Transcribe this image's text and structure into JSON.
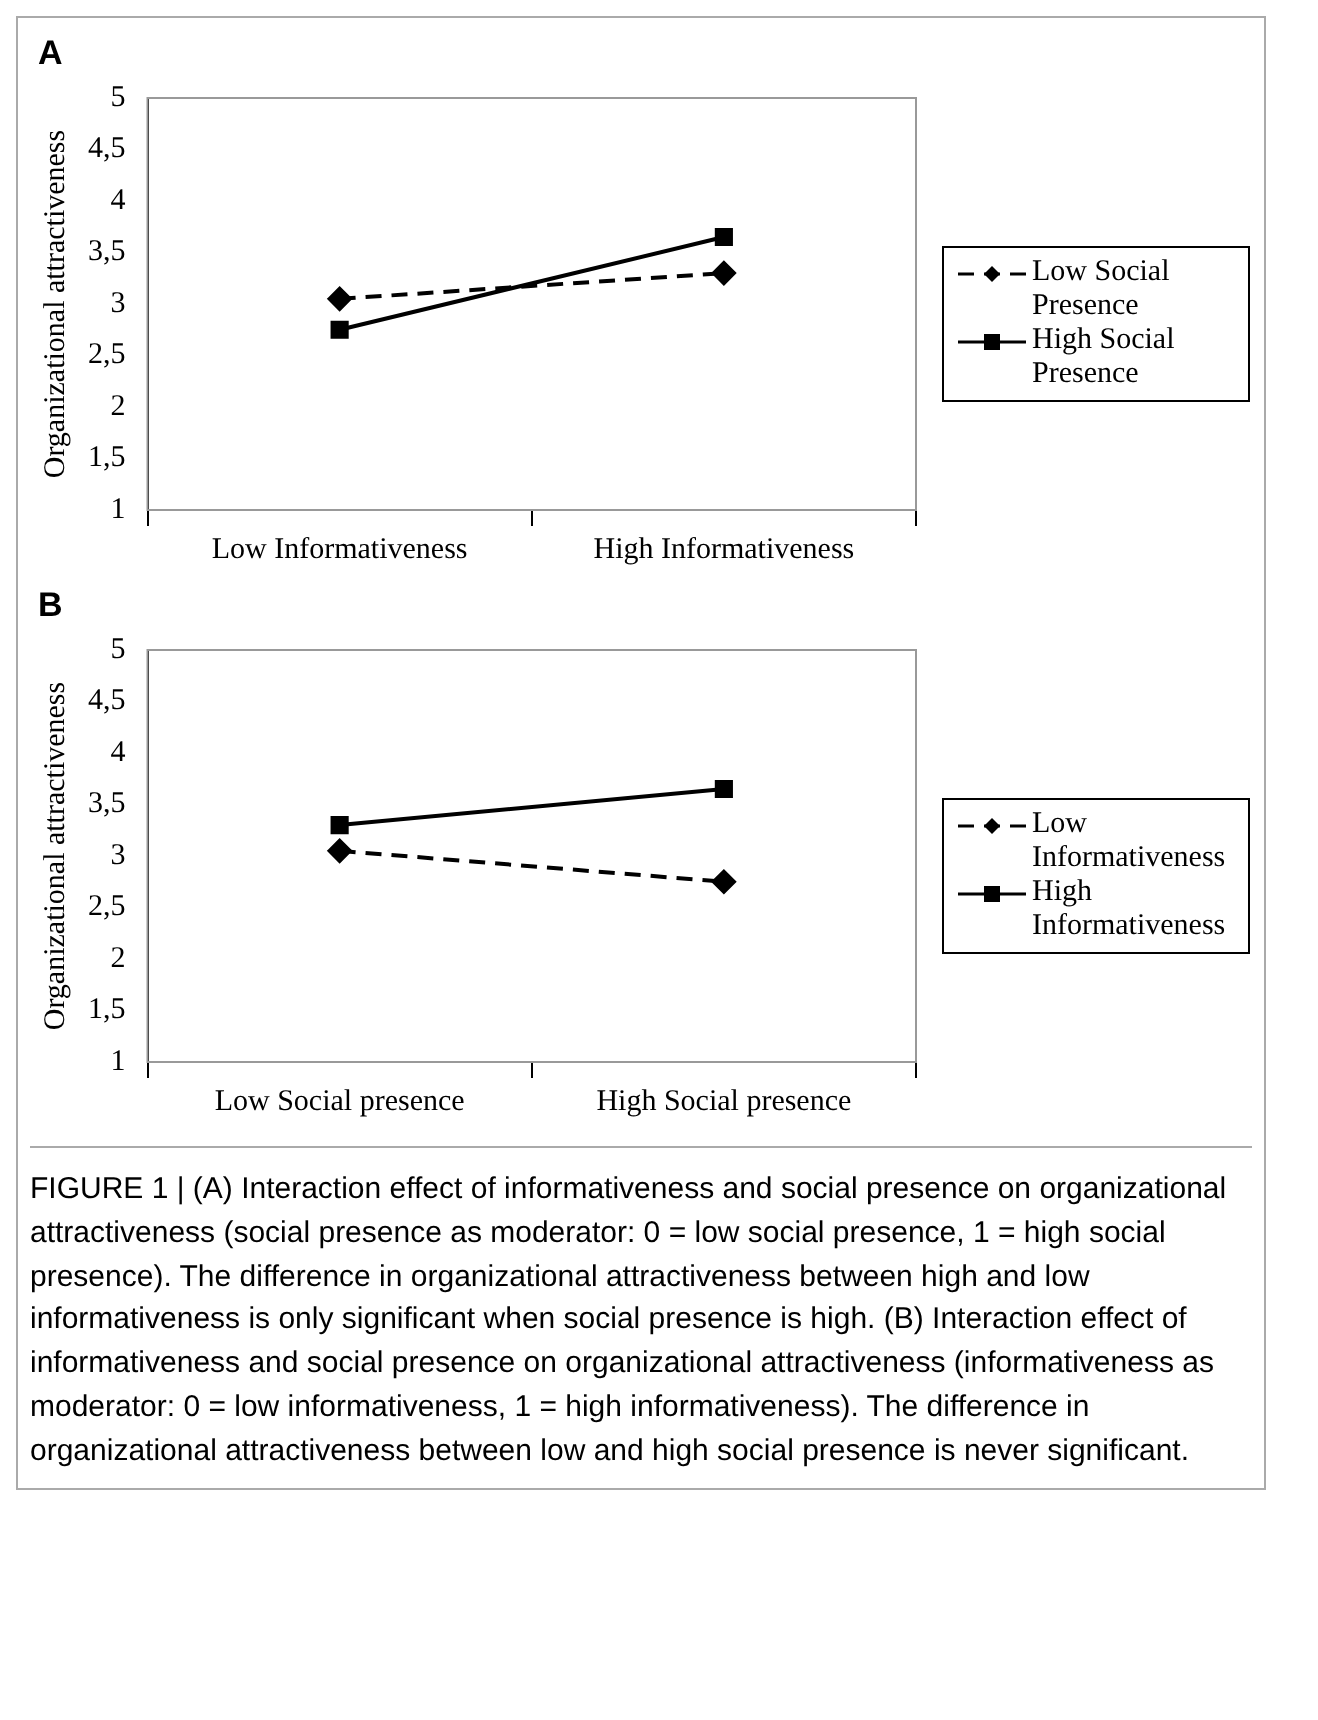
{
  "chart_data": [
    {
      "type": "line",
      "title": "A",
      "ylabel": "Organizational attractiveness",
      "categories": [
        "Low Informativeness",
        "High Informativeness"
      ],
      "series": [
        {
          "name": "Low Social Presence",
          "color": "#000000",
          "values": [
            3.05,
            3.3
          ],
          "line_style": "dashed",
          "marker": "diamond"
        },
        {
          "name": "High Social Presence",
          "color": "#000000",
          "values": [
            2.75,
            3.65
          ],
          "line_style": "solid",
          "marker": "square"
        }
      ],
      "ylim": [
        1,
        5
      ],
      "yticks": [
        1,
        {
          "value": 1.5,
          "label": "1,5"
        },
        2,
        {
          "value": 2.5,
          "label": "2,5"
        },
        3,
        {
          "value": 3.5,
          "label": "3,5"
        },
        4,
        {
          "value": 4.5,
          "label": "4,5"
        },
        5
      ],
      "grid": false,
      "legend": "right"
    },
    {
      "type": "line",
      "title": "B",
      "ylabel": "Organizational attractiveness",
      "categories": [
        "Low Social presence",
        "High Social presence"
      ],
      "series": [
        {
          "name": "Low Informativeness",
          "color": "#000000",
          "values": [
            3.05,
            2.75
          ],
          "line_style": "dashed",
          "marker": "diamond"
        },
        {
          "name": "High Informativeness",
          "color": "#000000",
          "values": [
            3.3,
            3.65
          ],
          "line_style": "solid",
          "marker": "square"
        }
      ],
      "ylim": [
        1,
        5
      ],
      "yticks": [
        1,
        {
          "value": 1.5,
          "label": "1,5"
        },
        2,
        {
          "value": 2.5,
          "label": "2,5"
        },
        3,
        {
          "value": 3.5,
          "label": "3,5"
        },
        4,
        {
          "value": 4.5,
          "label": "4,5"
        },
        5
      ],
      "grid": false,
      "legend": "right",
      "annotations": [
        "FIGURE 1 | (A) Interaction effect of informativeness and social presence on organizational attractiveness (social presence as moderator: 0 = low social presence, 1 = high social presence). The difference in organizational attractiveness between high and low informativeness is only significant when social presence is high. (B) Interaction effect of informativeness and social presence on organizational attractiveness (informativeness as moderator: 0 = low informativeness, 1 = high informativeness). The difference in organizational attractiveness between low and high social presence is never significant."
      ]
    }
  ]
}
